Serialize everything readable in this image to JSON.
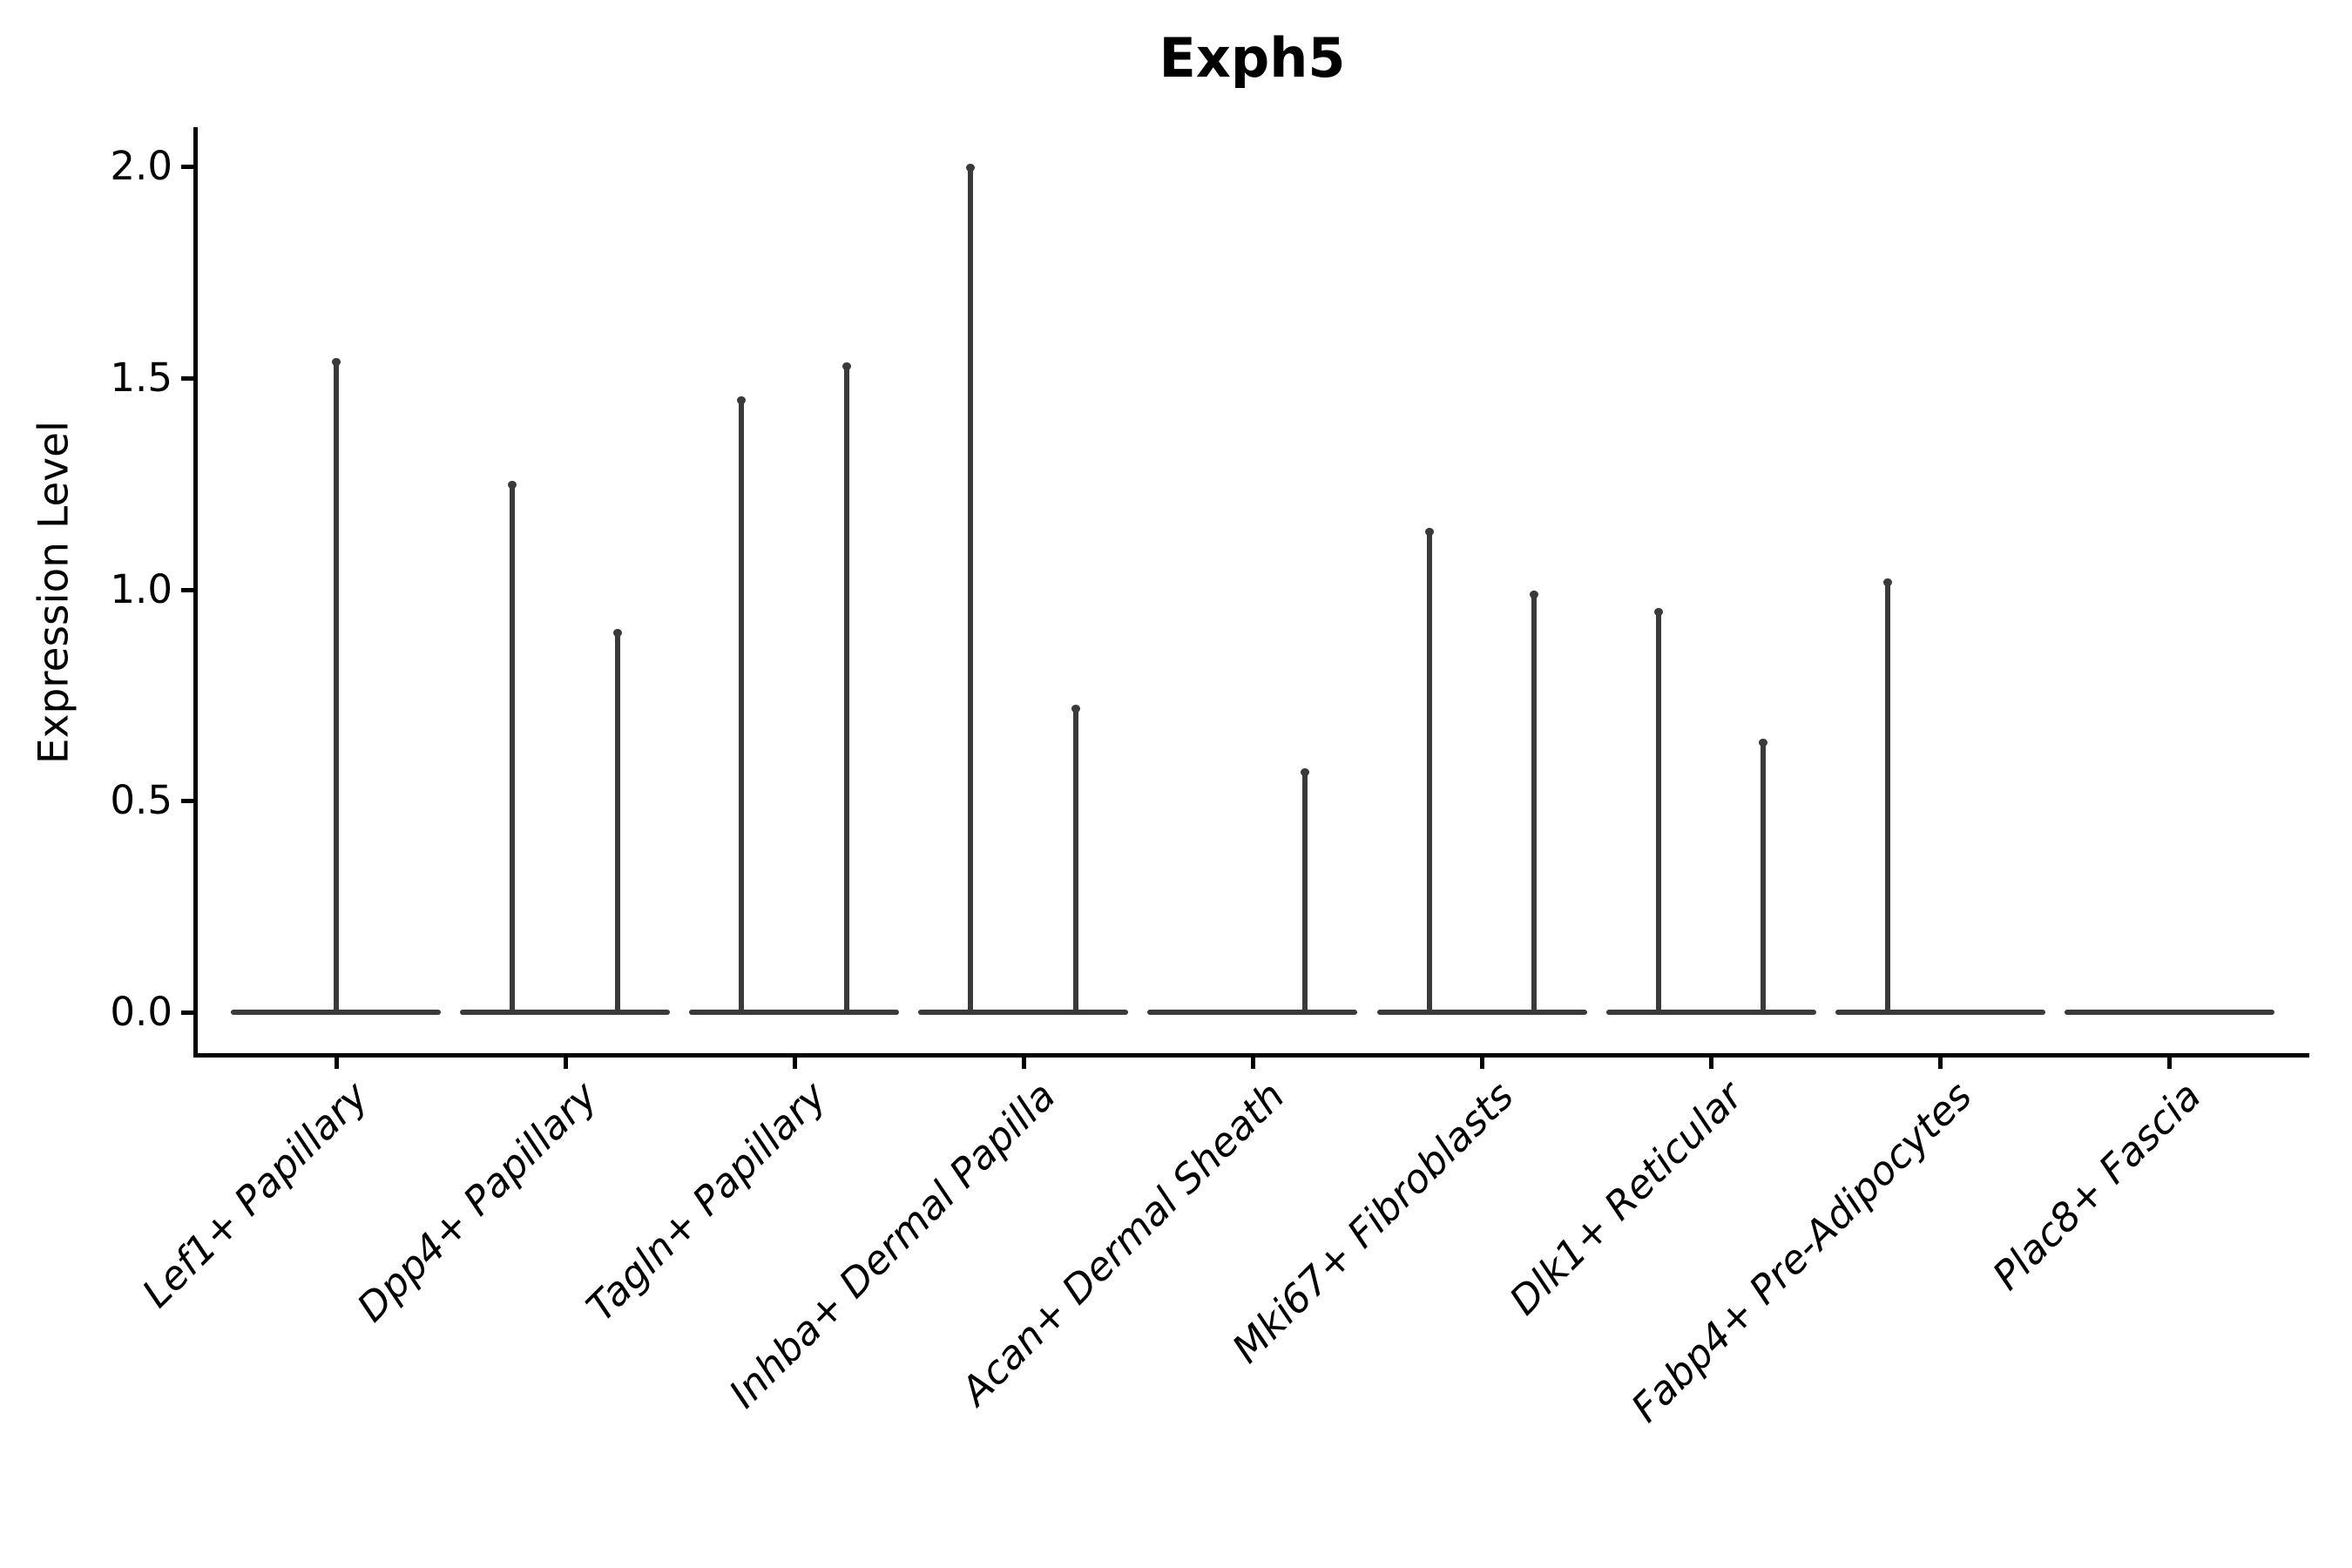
{
  "chart_data": {
    "type": "violin",
    "title": "Exph5",
    "ylabel": "Expression Level",
    "xlabel": "",
    "grid": false,
    "legend": "none",
    "ylim": [
      0,
      2.08
    ],
    "yticks": [
      0.0,
      0.5,
      1.0,
      1.5,
      2.0
    ],
    "ytick_labels": [
      "0.0",
      "0.5",
      "1.0",
      "1.5",
      "2.0"
    ],
    "categories": [
      "Lef1+ Papillary",
      "Dpp4+ Papillary",
      "Tagln+ Papillary",
      "Inhba+ Dermal Papilla",
      "Acan+ Dermal Sheath",
      "Mki67+ Fibroblasts",
      "Dlk1+ Reticular",
      "Fabp4+ Pre-Adipocytes",
      "Plac8+ Fascia"
    ],
    "series": [
      {
        "category": "Lef1+ Papillary",
        "violins": [
          {
            "position": "full",
            "max": 1.54
          }
        ]
      },
      {
        "category": "Dpp4+ Papillary",
        "violins": [
          {
            "position": "left",
            "max": 1.25
          },
          {
            "position": "right",
            "max": 0.9
          }
        ]
      },
      {
        "category": "Tagln+ Papillary",
        "violins": [
          {
            "position": "left",
            "max": 1.45
          },
          {
            "position": "right",
            "max": 1.53
          }
        ]
      },
      {
        "category": "Inhba+ Dermal Papilla",
        "violins": [
          {
            "position": "left",
            "max": 2.0
          },
          {
            "position": "right",
            "max": 0.72
          }
        ]
      },
      {
        "category": "Acan+ Dermal Sheath",
        "violins": [
          {
            "position": "left",
            "max": 0.0
          },
          {
            "position": "right",
            "max": 0.57
          }
        ]
      },
      {
        "category": "Mki67+ Fibroblasts",
        "violins": [
          {
            "position": "left",
            "max": 1.14
          },
          {
            "position": "right",
            "max": 0.99
          }
        ]
      },
      {
        "category": "Dlk1+ Reticular",
        "violins": [
          {
            "position": "left",
            "max": 0.95
          },
          {
            "position": "right",
            "max": 0.64
          }
        ]
      },
      {
        "category": "Fabp4+ Pre-Adipocytes",
        "violins": [
          {
            "position": "left",
            "max": 1.02
          },
          {
            "position": "right",
            "max": 0.0
          }
        ]
      },
      {
        "category": "Plac8+ Fascia",
        "violins": [
          {
            "position": "full",
            "max": 0.0
          }
        ]
      }
    ],
    "violin_color": "#3a3a3a",
    "axis_color": "#000000",
    "text_color": "#000000"
  }
}
